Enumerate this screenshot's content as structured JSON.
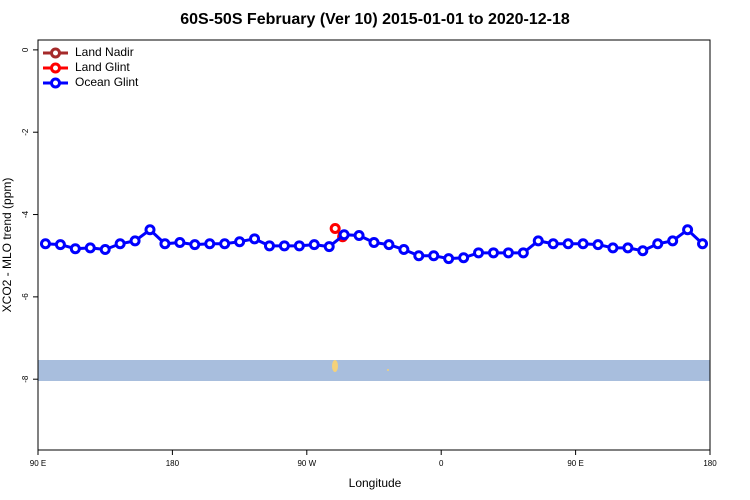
{
  "chart_data": {
    "type": "line",
    "title": "60S-50S February (Ver 10)   2015-01-01 to 2020-12-18",
    "x_label": "Longitude",
    "y_label": "XCO2 - MLO trend (ppm)",
    "xlim": [
      90,
      540
    ],
    "xticks": [
      {
        "value": 90,
        "label": "90 E"
      },
      {
        "value": 180,
        "label": "180"
      },
      {
        "value": 270,
        "label": "90 W"
      },
      {
        "value": 360,
        "label": "0"
      },
      {
        "value": 450,
        "label": "90 E"
      },
      {
        "value": 540,
        "label": "180"
      }
    ],
    "ylim": [
      -9.72,
      0.24
    ],
    "yticks": [
      0,
      -2,
      -4,
      -6,
      -8
    ],
    "legend_position": "top-left",
    "series": [
      {
        "name": "Land Nadir",
        "color": "#a52a2a",
        "x": [],
        "values": []
      },
      {
        "name": "Land Glint",
        "color": "#ff0000",
        "x": [
          289,
          294
        ],
        "values": [
          -4.34,
          -4.54
        ]
      },
      {
        "name": "Ocean Glint",
        "color": "#0000ff",
        "x": [
          95,
          105,
          115,
          125,
          135,
          145,
          155,
          165,
          175,
          185,
          195,
          205,
          215,
          225,
          235,
          245,
          255,
          265,
          275,
          285,
          295,
          305,
          315,
          325,
          335,
          345,
          355,
          365,
          375,
          385,
          395,
          405,
          415,
          425,
          435,
          445,
          455,
          465,
          475,
          485,
          495,
          505,
          515,
          525,
          535
        ],
        "values": [
          -4.71,
          -4.73,
          -4.83,
          -4.81,
          -4.85,
          -4.71,
          -4.64,
          -4.37,
          -4.71,
          -4.68,
          -4.73,
          -4.71,
          -4.71,
          -4.66,
          -4.59,
          -4.76,
          -4.76,
          -4.76,
          -4.73,
          -4.78,
          -4.49,
          -4.51,
          -4.68,
          -4.73,
          -4.85,
          -5.0,
          -5.0,
          -5.07,
          -5.05,
          -4.93,
          -4.93,
          -4.93,
          -4.93,
          -4.64,
          -4.71,
          -4.71,
          -4.71,
          -4.73,
          -4.81,
          -4.81,
          -4.88,
          -4.71,
          -4.64,
          -4.37,
          -4.71
        ]
      }
    ]
  }
}
